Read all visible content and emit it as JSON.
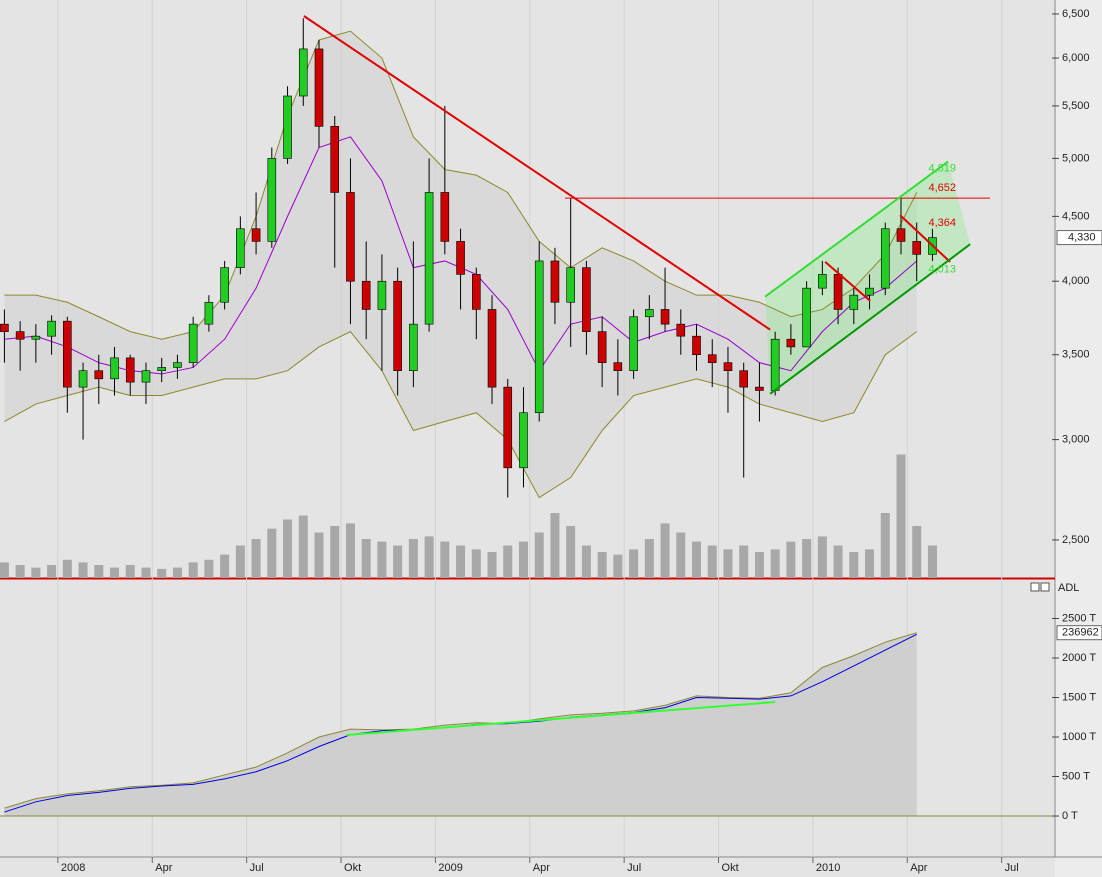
{
  "chart_data": [
    {
      "type": "candlestick",
      "x": [
        -1.7,
        -1.2,
        -0.7,
        -0.2,
        0.3,
        0.8,
        1.3,
        1.8,
        2.3,
        2.8,
        3.3,
        3.8,
        4.3,
        4.8,
        5.3,
        5.8,
        6.3,
        6.8,
        7.3,
        7.8,
        8.3,
        8.8,
        9.3,
        9.8,
        10.3,
        10.8,
        11.3,
        11.8,
        12.3,
        12.8,
        13.3,
        13.8,
        14.3,
        14.8,
        15.3,
        15.8,
        16.3,
        16.8,
        17.3,
        17.8,
        18.3,
        18.8,
        19.3,
        19.8,
        20.3,
        20.8,
        21.3,
        21.8,
        22.3,
        22.8,
        23.3,
        23.8,
        24.3,
        24.8,
        25.3,
        25.8,
        26.3,
        26.8,
        27.3,
        27.8
      ],
      "open": [
        3700,
        3650,
        3600,
        3620,
        3720,
        3300,
        3400,
        3350,
        3480,
        3330,
        3400,
        3420,
        3450,
        3700,
        3850,
        4100,
        4400,
        4300,
        5000,
        5600,
        6100,
        5300,
        4700,
        4000,
        3800,
        4000,
        3400,
        3700,
        4700,
        4300,
        4050,
        3800,
        3300,
        2850,
        3150,
        4150,
        3850,
        4100,
        3650,
        3450,
        3400,
        3750,
        3800,
        3700,
        3620,
        3500,
        3450,
        3400,
        3300,
        3280,
        3600,
        3550,
        3950,
        4050,
        3800,
        3900,
        3950,
        4400,
        4300,
        4200
      ],
      "high": [
        3800,
        3720,
        3700,
        3760,
        3750,
        3450,
        3500,
        3550,
        3500,
        3450,
        3480,
        3500,
        3750,
        3900,
        4150,
        4500,
        4700,
        5100,
        5700,
        6450,
        6200,
        5400,
        5000,
        4300,
        4200,
        4100,
        4300,
        5000,
        5500,
        4400,
        4100,
        3900,
        3350,
        3300,
        4300,
        4250,
        4650,
        4150,
        3750,
        3600,
        3800,
        3900,
        4100,
        3800,
        3700,
        3600,
        3550,
        3450,
        3450,
        3650,
        3700,
        4000,
        4150,
        4100,
        3950,
        4050,
        4450,
        4650,
        4450,
        4400
      ],
      "low": [
        3450,
        3400,
        3450,
        3500,
        3150,
        3000,
        3200,
        3250,
        3250,
        3200,
        3330,
        3350,
        3420,
        3650,
        3800,
        4050,
        4200,
        4250,
        4950,
        5500,
        5100,
        4100,
        3700,
        3600,
        3400,
        3250,
        3300,
        3650,
        4200,
        3800,
        3600,
        3200,
        2700,
        2750,
        3100,
        3700,
        3550,
        3500,
        3300,
        3250,
        3350,
        3600,
        3650,
        3500,
        3400,
        3300,
        3150,
        2800,
        3100,
        3250,
        3500,
        3550,
        3900,
        3700,
        3700,
        3800,
        3900,
        4200,
        4000,
        4150
      ],
      "close": [
        3650,
        3600,
        3620,
        3720,
        3300,
        3400,
        3350,
        3480,
        3330,
        3400,
        3420,
        3450,
        3700,
        3850,
        4100,
        4400,
        4300,
        5000,
        5600,
        6100,
        5300,
        4700,
        4000,
        3800,
        4000,
        3400,
        3700,
        4700,
        4300,
        4050,
        3800,
        3300,
        2850,
        3150,
        4150,
        3850,
        4100,
        3650,
        3450,
        3400,
        3750,
        3800,
        3700,
        3620,
        3500,
        3450,
        3400,
        3300,
        3280,
        3600,
        3550,
        3950,
        4050,
        3800,
        3900,
        3950,
        4400,
        4300,
        4200,
        4330
      ],
      "up_color": "#22cc22",
      "down_color": "#cc0000",
      "volume": {
        "color": "#a8a8a8",
        "vlim": [
          0,
          100
        ],
        "values": [
          12,
          10,
          8,
          10,
          14,
          12,
          10,
          8,
          10,
          8,
          7,
          8,
          12,
          14,
          18,
          25,
          30,
          38,
          45,
          48,
          35,
          40,
          42,
          30,
          28,
          25,
          30,
          32,
          28,
          25,
          22,
          20,
          25,
          28,
          35,
          50,
          40,
          25,
          20,
          18,
          22,
          30,
          42,
          35,
          28,
          25,
          22,
          25,
          20,
          22,
          28,
          30,
          32,
          25,
          20,
          22,
          50,
          95,
          40,
          25
        ]
      },
      "line_x": [
        -1.7,
        -0.7,
        0.3,
        1.3,
        2.3,
        3.3,
        4.3,
        5.3,
        6.3,
        7.3,
        8.3,
        9.3,
        10.3,
        11.3,
        12.3,
        13.3,
        14.3,
        15.3,
        16.3,
        17.3,
        18.3,
        19.3,
        20.3,
        21.3,
        22.3,
        23.3,
        24.3,
        25.3,
        26.3,
        27.3
      ],
      "lines": [
        {
          "color": "#8a8a2a",
          "values": [
            3900,
            3900,
            3850,
            3750,
            3650,
            3600,
            3650,
            3900,
            4500,
            5400,
            6200,
            6300,
            6000,
            5200,
            4900,
            4850,
            4700,
            4300,
            4100,
            4250,
            4150,
            4000,
            3900,
            3900,
            3850,
            3750,
            3800,
            3950,
            4200,
            4700
          ]
        },
        {
          "color": "#8a8a2a",
          "values": [
            3100,
            3200,
            3250,
            3300,
            3250,
            3250,
            3300,
            3350,
            3350,
            3400,
            3550,
            3650,
            3400,
            3050,
            3100,
            3150,
            3000,
            2700,
            2800,
            3050,
            3250,
            3300,
            3350,
            3300,
            3200,
            3150,
            3100,
            3150,
            3500,
            3650
          ]
        },
        {
          "color": "#9900cc",
          "values": [
            3600,
            3620,
            3550,
            3450,
            3400,
            3380,
            3420,
            3600,
            3950,
            4500,
            5100,
            5200,
            4800,
            4100,
            4150,
            4050,
            3800,
            3400,
            3700,
            3750,
            3580,
            3650,
            3700,
            3600,
            3450,
            3400,
            3650,
            3850,
            3950,
            4150
          ]
        }
      ],
      "trendlines": [
        {
          "color": "#e00000",
          "x": [
            7.82,
            22.64
          ],
          "y": [
            6476,
            3663
          ]
        },
        {
          "color": "#e00000",
          "x": [
            16.12,
            29.63
          ],
          "y": [
            4652,
            4652
          ]
        },
        {
          "color": "#e00000",
          "x": [
            24.39,
            25.82
          ],
          "y": [
            4143,
            3860
          ]
        },
        {
          "color": "#e00000",
          "x": [
            26.77,
            28.36
          ],
          "y": [
            4510,
            4143
          ]
        },
        {
          "color": "#33dd33",
          "x": [
            22.48,
            28.3
          ],
          "y": [
            3889,
            4972
          ]
        },
        {
          "color": "#009900",
          "x": [
            22.64,
            29.0
          ],
          "y": [
            3260,
            4278
          ]
        }
      ],
      "levels": [
        {
          "value": 4819,
          "label": "4,819",
          "color": "#33dd33"
        },
        {
          "value": 4652,
          "label": "4,652",
          "color": "#e00000"
        },
        {
          "value": 4364,
          "label": "4,364",
          "color": "#e00000"
        },
        {
          "value": 4013,
          "label": "4,013",
          "color": "#33dd33"
        }
      ],
      "last_price": {
        "value": 4330,
        "label": "4,330"
      },
      "log": true,
      "xlim": [
        -1.84,
        31.6
      ],
      "xticks": [
        {
          "value": 0,
          "label": "2008"
        },
        {
          "value": 3,
          "label": "Apr"
        },
        {
          "value": 6,
          "label": "Jul"
        },
        {
          "value": 9,
          "label": "Okt"
        },
        {
          "value": 12,
          "label": "2009"
        },
        {
          "value": 15,
          "label": "Apr"
        },
        {
          "value": 18,
          "label": "Jul"
        },
        {
          "value": 21,
          "label": "Okt"
        },
        {
          "value": 24,
          "label": "2010"
        },
        {
          "value": 27,
          "label": "Apr"
        },
        {
          "value": 30,
          "label": "Jul"
        }
      ],
      "ylim": [
        2333,
        6667
      ],
      "yticks": [
        {
          "value": 2500,
          "label": "2,500"
        },
        {
          "value": 3000,
          "label": "3,000"
        },
        {
          "value": 3500,
          "label": "3,500"
        },
        {
          "value": 4000,
          "label": "4,000"
        },
        {
          "value": 4500,
          "label": "4,500"
        },
        {
          "value": 5000,
          "label": "5,000"
        },
        {
          "value": 5500,
          "label": "5,500"
        },
        {
          "value": 6000,
          "label": "6,000"
        },
        {
          "value": 6500,
          "label": "6,500"
        }
      ]
    },
    {
      "type": "area",
      "title": "ADL",
      "x": [
        -1.7,
        -0.7,
        0.3,
        1.3,
        2.3,
        3.3,
        4.3,
        5.3,
        6.3,
        7.3,
        8.3,
        9.3,
        10.3,
        11.3,
        12.3,
        13.3,
        14.3,
        15.3,
        16.3,
        17.3,
        18.3,
        19.3,
        20.3,
        21.3,
        22.3,
        23.3,
        24.3,
        25.3,
        26.3,
        27.3
      ],
      "values": [
        100,
        220,
        280,
        320,
        370,
        390,
        420,
        520,
        620,
        800,
        1000,
        1100,
        1090,
        1100,
        1150,
        1180,
        1170,
        1230,
        1280,
        1300,
        1330,
        1400,
        1520,
        1500,
        1490,
        1560,
        1880,
        2030,
        2200,
        2320
      ],
      "color": "#8a8a3a",
      "fill": "#cfcfcf",
      "ma": {
        "color": "#0000dd",
        "values": [
          50,
          180,
          260,
          300,
          350,
          380,
          400,
          470,
          560,
          700,
          880,
          1030,
          1080,
          1090,
          1120,
          1160,
          1170,
          1200,
          1250,
          1280,
          1310,
          1370,
          1500,
          1490,
          1480,
          1520,
          1700,
          1900,
          2100,
          2300
        ]
      },
      "trendlines": [
        {
          "color": "#33ff33",
          "x": [
            9.19,
            22.8
          ],
          "y": [
            1025,
            1443
          ]
        }
      ],
      "current_label": "236962",
      "ylim": [
        -506,
        2772
      ],
      "yticks": [
        {
          "value": 0,
          "label": "0 T"
        },
        {
          "value": 500,
          "label": "500 T"
        },
        {
          "value": 1000,
          "label": "1000 T"
        },
        {
          "value": 1500,
          "label": "1500 T"
        },
        {
          "value": 2000,
          "label": "2000 T"
        },
        {
          "value": 2500,
          "label": "2500 T"
        }
      ]
    }
  ]
}
